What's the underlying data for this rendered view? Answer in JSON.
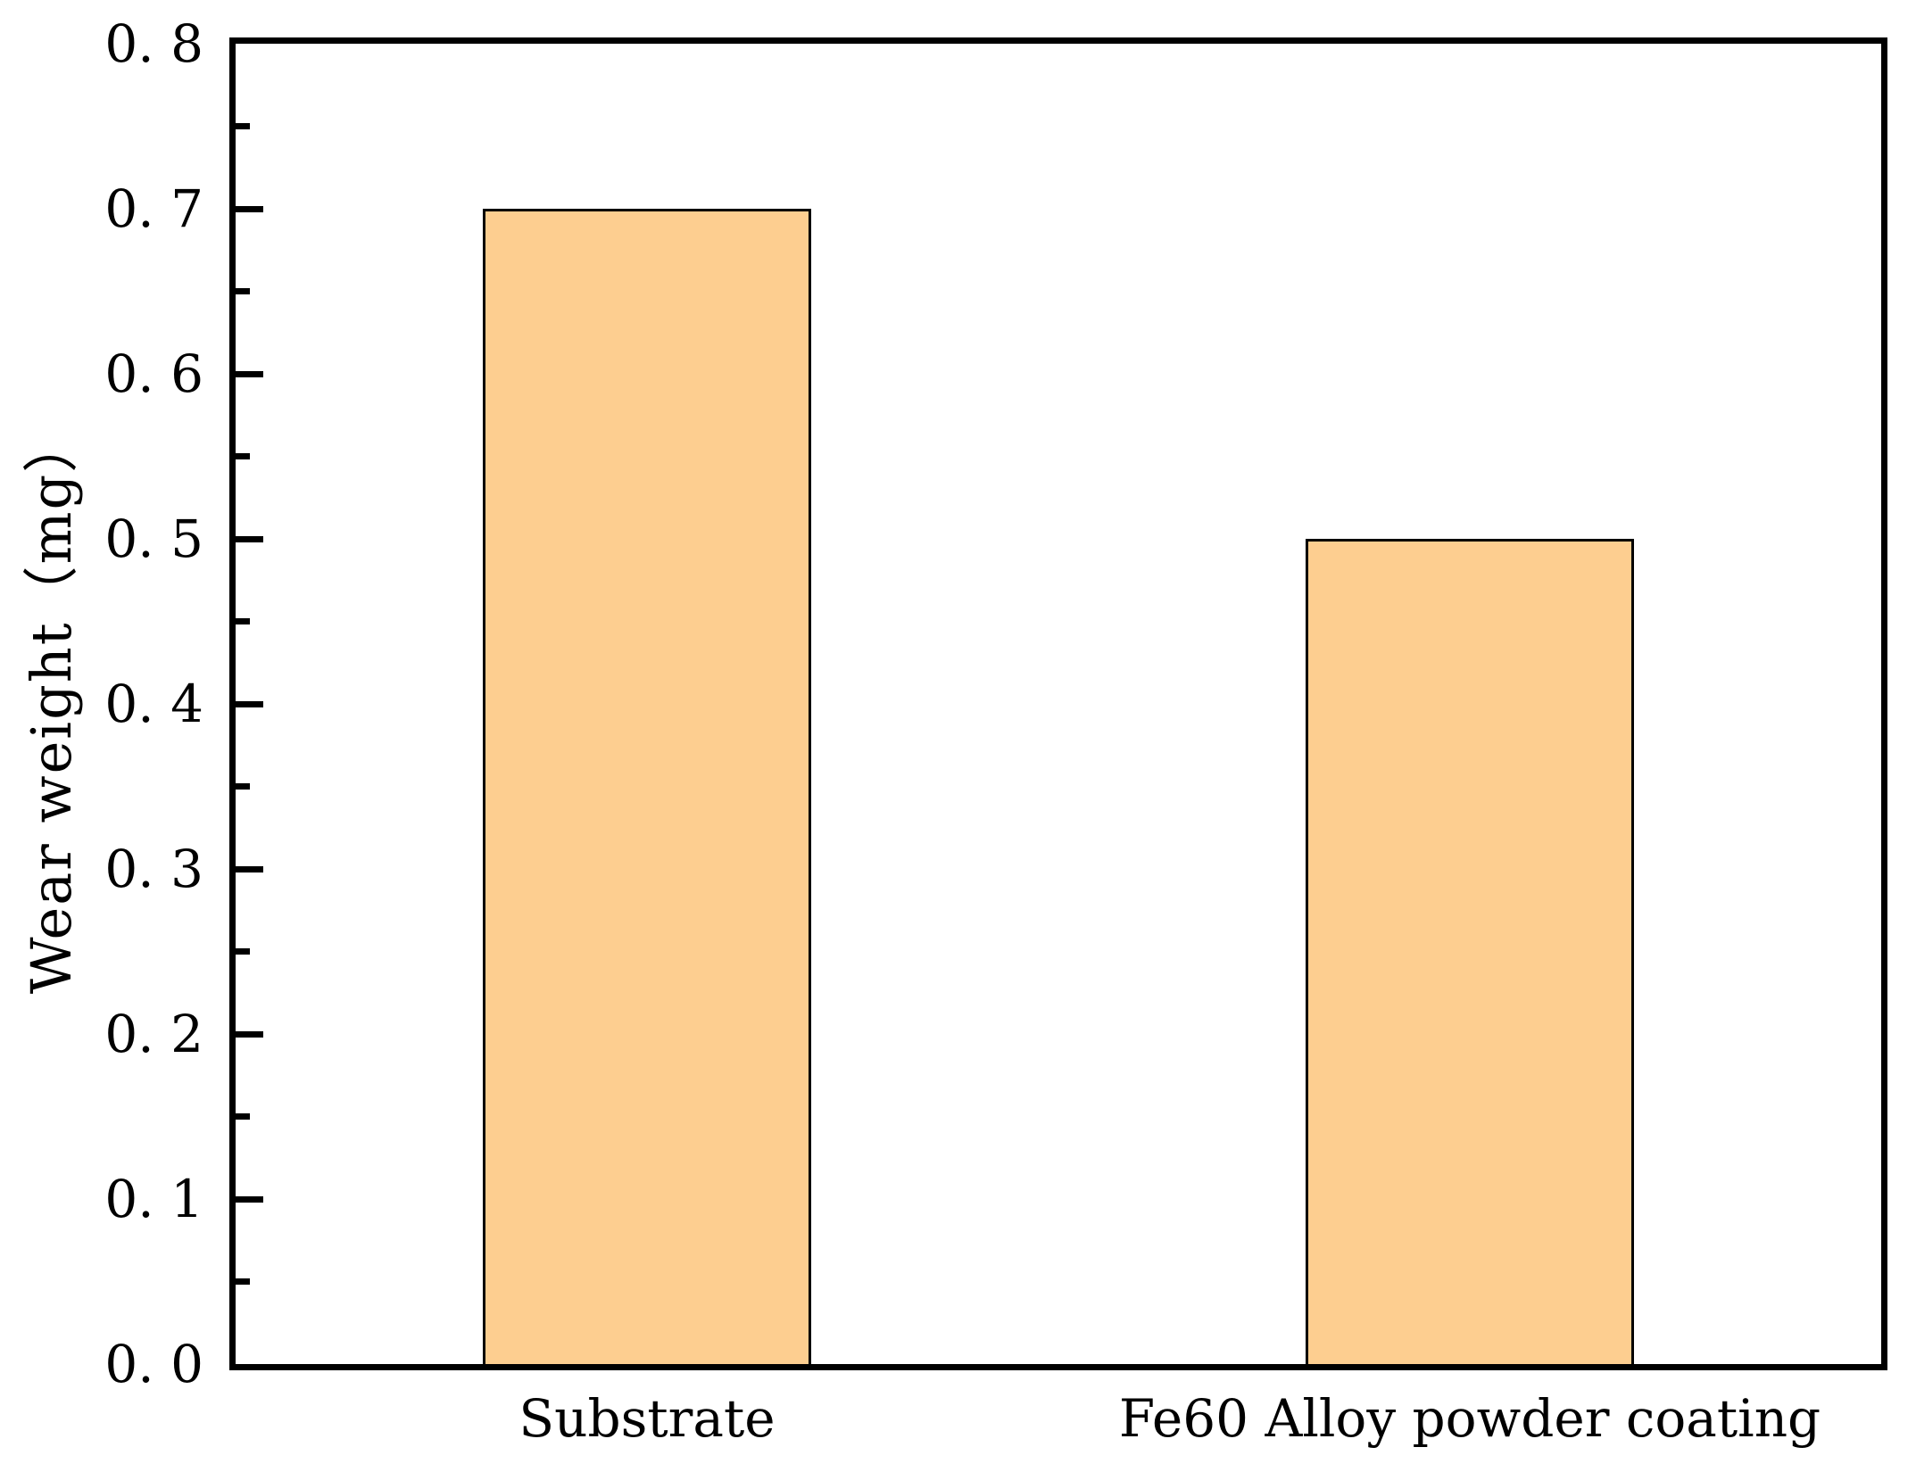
{
  "chart_data": {
    "type": "bar",
    "categories": [
      "Substrate",
      "Fe60 Alloy powder coating"
    ],
    "values": [
      0.7,
      0.5
    ],
    "title": "",
    "xlabel": "",
    "ylabel": "Wear weight（mg）",
    "ylim": [
      0.0,
      0.8
    ],
    "y_major_ticks": [
      0.0,
      0.1,
      0.2,
      0.3,
      0.4,
      0.5,
      0.6,
      0.7,
      0.8
    ],
    "y_tick_labels": [
      "0. 0",
      "0. 1",
      "0. 2",
      "0. 3",
      "0. 4",
      "0. 5",
      "0. 6",
      "0. 7",
      "0. 8"
    ],
    "y_minor_ticks": [
      0.05,
      0.15,
      0.25,
      0.35,
      0.45,
      0.55,
      0.65,
      0.75
    ],
    "grid": "off",
    "legend": "none",
    "colors": {
      "bar_fill": "#FDCE90",
      "bar_border": "#000000",
      "axis": "#000000",
      "background": "#ffffff",
      "text": "#000000"
    },
    "layout_hints": {
      "bar_centers_fraction": [
        0.25,
        0.75
      ],
      "bar_width_fraction": 0.2,
      "ticks_direction": "in",
      "ticks_on": "left-spine-only"
    }
  }
}
